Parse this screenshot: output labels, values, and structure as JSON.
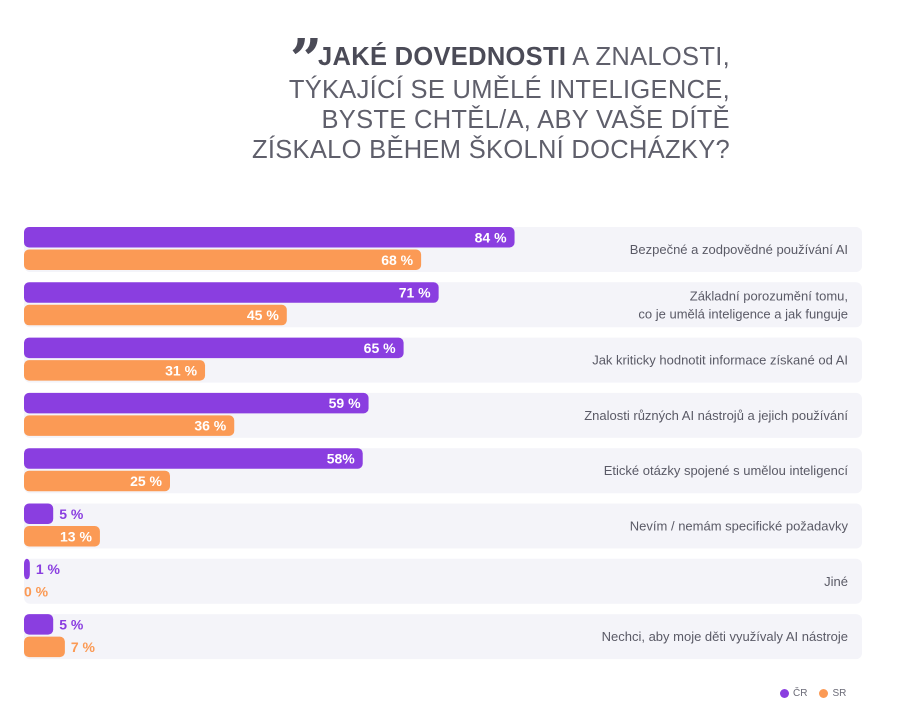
{
  "title": {
    "quote": "”",
    "bold": "JAKÉ DOVEDNOSTI",
    "line1_rest": " A ZNALOSTI,",
    "line2": "TÝKAJÍCÍ SE UMĚLÉ INTELIGENCE,",
    "line3": "BYSTE CHTĚL/A, ABY VAŠE DÍTĚ",
    "line4": "ZÍSKALO BĚHEM ŠKOLNÍ DOCHÁZKY?"
  },
  "colors": {
    "cr": "#8a3ee0",
    "sr": "#fb9a55",
    "row_bg": "#f4f4f9"
  },
  "chart_data": {
    "type": "bar",
    "orientation": "horizontal",
    "xlim": [
      0,
      100
    ],
    "categories": [
      [
        "Bezpečné a zodpovědné používání AI"
      ],
      [
        "Základní porozumění tomu,",
        "co je umělá inteligence a jak funguje"
      ],
      [
        "Jak kriticky hodnotit informace získané od AI"
      ],
      [
        "Znalosti různých AI nástrojů a jejich používání"
      ],
      [
        "Etické otázky spojené s umělou inteligencí"
      ],
      [
        "Nevím / nemám specifické požadavky"
      ],
      [
        "Jiné"
      ],
      [
        "Nechci, aby moje děti využívaly AI nástroje"
      ]
    ],
    "series": [
      {
        "name": "ČR",
        "values": [
          84,
          71,
          65,
          59,
          58,
          5,
          1,
          5
        ],
        "labels": [
          "84 %",
          "71 %",
          "65 %",
          "59 %",
          "58%",
          "5 %",
          "1 %",
          "5 %"
        ]
      },
      {
        "name": "SR",
        "values": [
          68,
          45,
          31,
          36,
          25,
          13,
          0,
          7
        ],
        "labels": [
          "68 %",
          "45 %",
          "31 %",
          "36 %",
          "25 %",
          "13 %",
          "0 %",
          "7 %"
        ]
      }
    ],
    "legend_position": "bottom-right",
    "grid": false
  }
}
